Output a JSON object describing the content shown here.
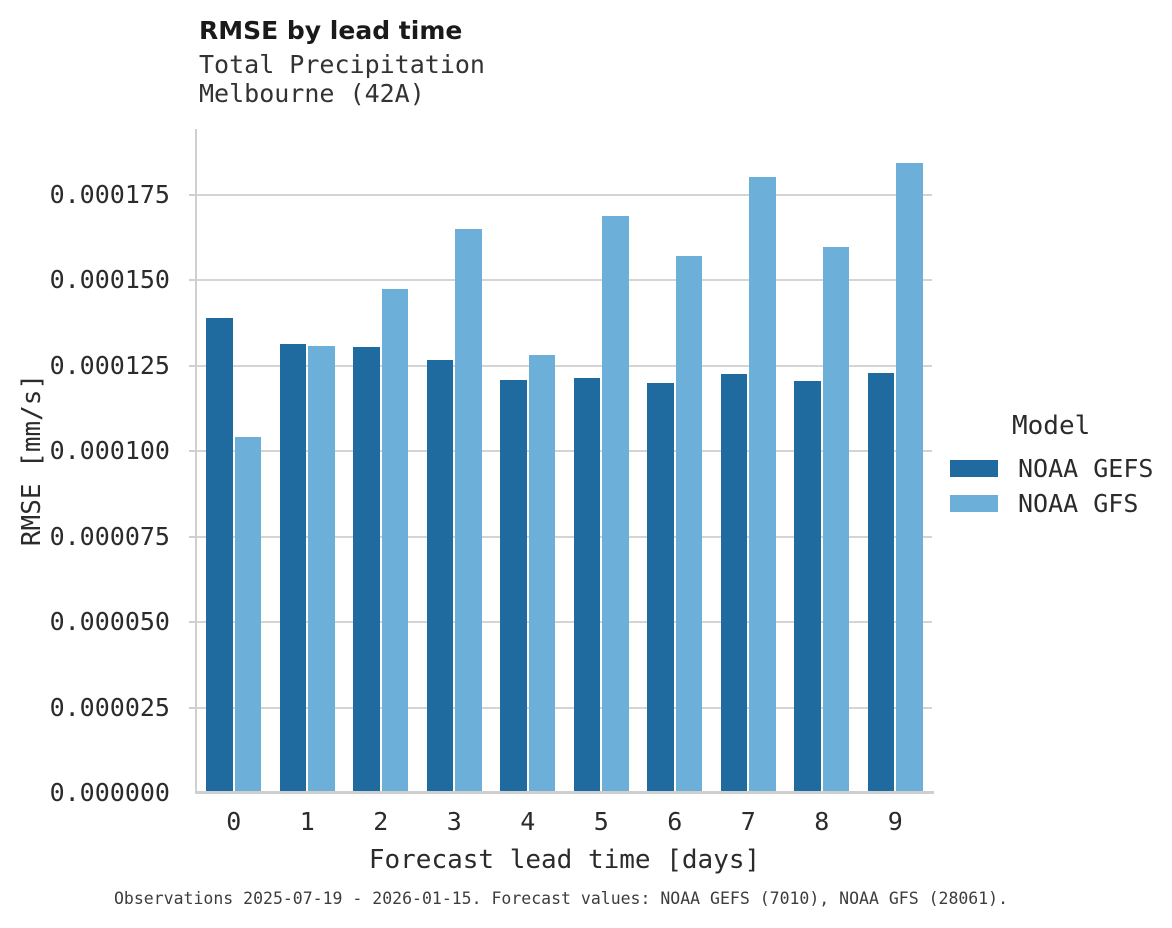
{
  "header": {
    "title": "RMSE by lead time",
    "subtitle_line1": "Total Precipitation",
    "subtitle_line2": "Melbourne (42A)"
  },
  "legend": {
    "title": "Model",
    "items": [
      {
        "label": "NOAA GEFS",
        "color": "#1f6a9e"
      },
      {
        "label": "NOAA GFS",
        "color": "#6cb0da"
      }
    ]
  },
  "caption": "Observations 2025-07-19 - 2026-01-15. Forecast values: NOAA GEFS (7010), NOAA GFS (28061).",
  "chart_data": {
    "type": "bar",
    "title": "RMSE by lead time",
    "subtitle": "Total Precipitation — Melbourne (42A)",
    "xlabel": "Forecast lead time [days]",
    "ylabel": "RMSE [mm/s]",
    "categories": [
      "0",
      "1",
      "2",
      "3",
      "4",
      "5",
      "6",
      "7",
      "8",
      "9"
    ],
    "series": [
      {
        "name": "NOAA GEFS",
        "color": "#1f6a9e",
        "values": [
          0.000139,
          0.0001315,
          0.0001305,
          0.0001267,
          0.000121,
          0.0001215,
          0.00012,
          0.0001225,
          0.0001205,
          0.000123
        ]
      },
      {
        "name": "NOAA GFS",
        "color": "#6cb0da",
        "values": [
          0.0001042,
          0.0001308,
          0.0001474,
          0.0001649,
          0.0001281,
          0.0001688,
          0.0001571,
          0.0001802,
          0.0001599,
          0.0001844
        ]
      }
    ],
    "ylim": [
      0,
      0.0001943
    ],
    "yticks": [
      0,
      2.5e-05,
      5e-05,
      7.5e-05,
      0.0001,
      0.000125,
      0.00015,
      0.000175
    ],
    "ytick_labels": [
      "0.000000",
      "0.000025",
      "0.000050",
      "0.000075",
      "0.000100",
      "0.000125",
      "0.000150",
      "0.000175"
    ],
    "grid": true,
    "legend_position": "right",
    "legend_title": "Model"
  }
}
